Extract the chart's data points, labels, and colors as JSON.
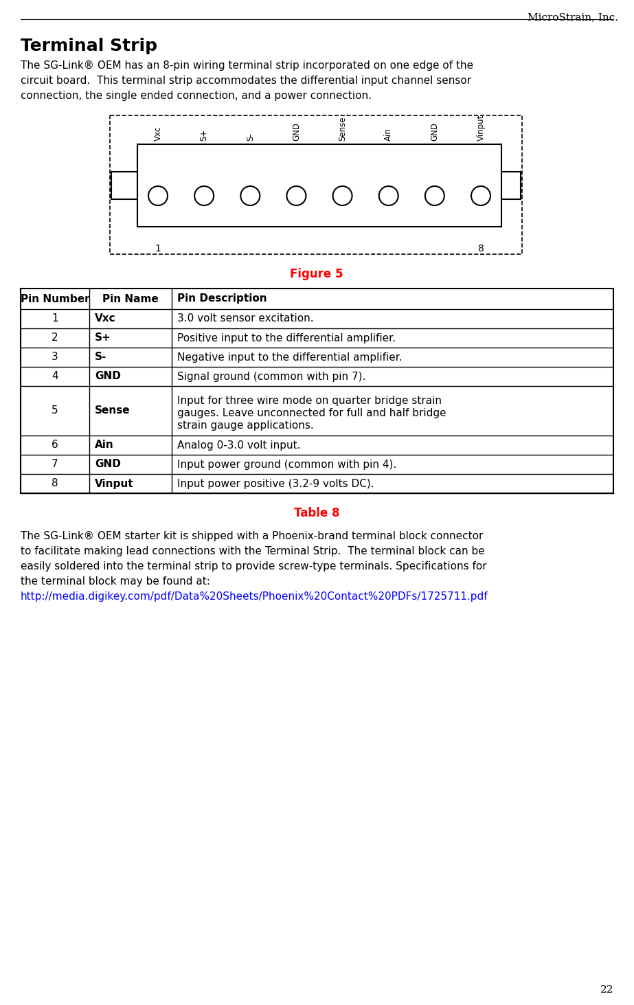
{
  "header_text": "MicroStrain, Inc.",
  "page_number": "22",
  "title": "Terminal Strip",
  "intro_text": "The SG-Link® OEM has an 8-pin wiring terminal strip incorporated on one edge of the circuit board.  This terminal strip accommodates the differential input channel sensor connection, the single ended connection, and a power connection.",
  "figure_caption": "Figure 5",
  "table_caption": "Table 8",
  "pin_labels": [
    "Vxc",
    "S+",
    "S-",
    "GND",
    "Sense",
    "Ain",
    "GND",
    "Vinput"
  ],
  "table_headers": [
    "Pin Number",
    "Pin Name",
    "Pin Description"
  ],
  "table_rows": [
    [
      "1",
      "Vxc",
      "3.0 volt sensor excitation."
    ],
    [
      "2",
      "S+",
      "Positive input to the differential amplifier."
    ],
    [
      "3",
      "S-",
      "Negative input to the differential amplifier."
    ],
    [
      "4",
      "GND",
      "Signal ground (common with pin 7)."
    ],
    [
      "5",
      "Sense",
      "Input for three wire mode on quarter bridge strain\ngauges. Leave unconnected for full and half bridge\nstrain gauge applications."
    ],
    [
      "6",
      "Ain",
      "Analog 0-3.0 volt input."
    ],
    [
      "7",
      "GND",
      "Input power ground (common with pin 4)."
    ],
    [
      "8",
      "Vinput",
      "Input power positive (3.2-9 volts DC)."
    ]
  ],
  "footer_text1": "The SG-Link® OEM starter kit is shipped with a Phoenix-brand terminal block connector to facilitate making lead connections with the Terminal Strip.  The terminal block can be easily soldered into the terminal strip to provide screw-type terminals. Specifications for the terminal block may be found at:",
  "footer_url": "http://media.digikey.com/pdf/Data%20Sheets/Phoenix%20Contact%20PDFs/1725711.pdf",
  "red_color": "#FF0000",
  "blue_color": "#0000FF",
  "black_color": "#000000",
  "bg_color": "#FFFFFF"
}
